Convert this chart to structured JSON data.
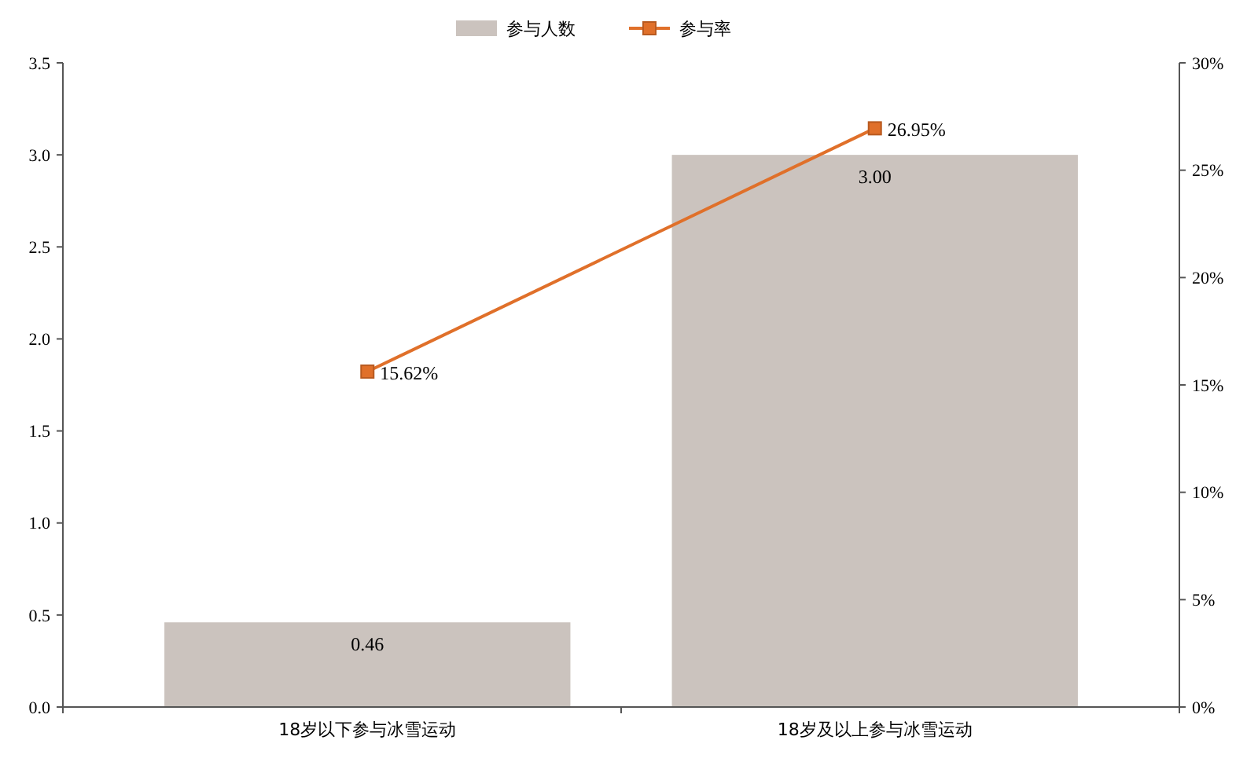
{
  "chart_data": {
    "type": "bar",
    "categories": [
      "18岁以下参与冰雪运动",
      "18岁及以上参与冰雪运动"
    ],
    "series": [
      {
        "name": "参与人数",
        "color": "#cbc3be",
        "values": [
          0.46,
          3.0
        ],
        "value_labels": [
          "0.46",
          "3.00"
        ]
      },
      {
        "name": "参与率",
        "type": "line",
        "axis": "y2",
        "color": "#e0702a",
        "values": [
          15.62,
          26.95
        ],
        "value_labels": [
          "15.62%",
          "26.95%"
        ],
        "marker": "square"
      }
    ],
    "ylim": [
      0,
      3.5
    ],
    "yticks": [
      {
        "value": 0,
        "label": "0.0"
      },
      {
        "value": 0.5,
        "label": "0.5"
      },
      {
        "value": 1,
        "label": "1.0"
      },
      {
        "value": 1.5,
        "label": "1.5"
      },
      {
        "value": 2,
        "label": "2.0"
      },
      {
        "value": 2.5,
        "label": "2.5"
      },
      {
        "value": 3,
        "label": "3.0"
      },
      {
        "value": 3.5,
        "label": "3.5"
      }
    ],
    "y2lim": [
      0,
      30
    ],
    "y2ticks": [
      {
        "value": 0,
        "label": "0%"
      },
      {
        "value": 5,
        "label": "5%"
      },
      {
        "value": 10,
        "label": "10%"
      },
      {
        "value": 15,
        "label": "15%"
      },
      {
        "value": 20,
        "label": "20%"
      },
      {
        "value": 25,
        "label": "25%"
      },
      {
        "value": 30,
        "label": "30%"
      }
    ],
    "legend": "top",
    "grid": false
  }
}
